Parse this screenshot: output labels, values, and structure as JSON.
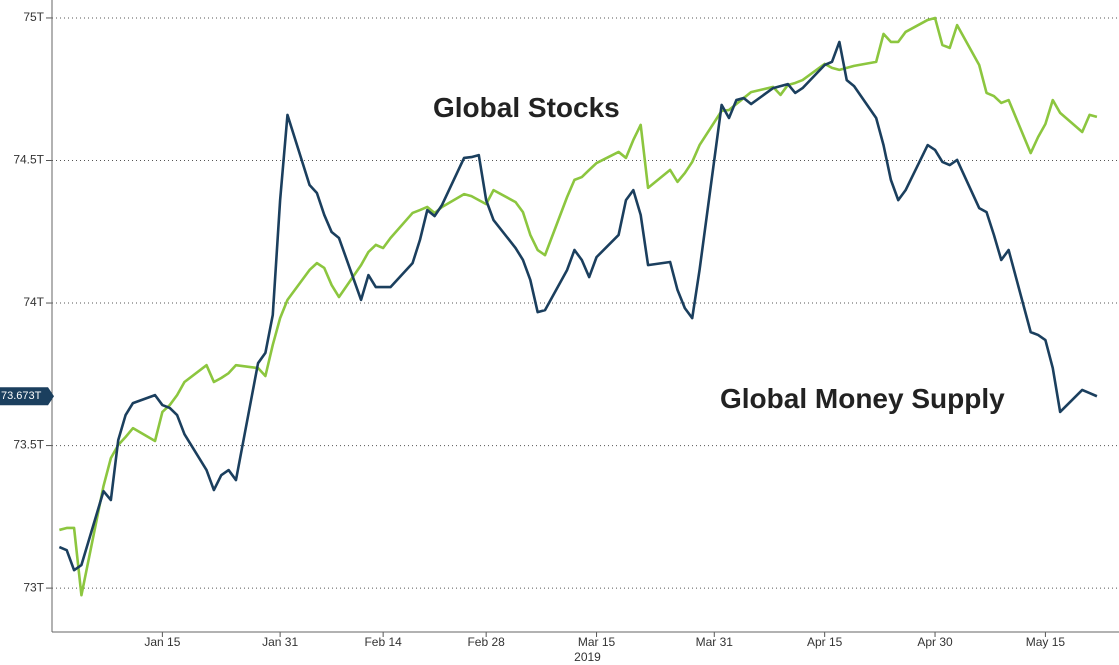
{
  "chart_data": {
    "type": "line",
    "xlabel": "2019",
    "xlim": [
      0,
      145
    ],
    "xticks": [
      {
        "value": 15,
        "label": "Jan 15"
      },
      {
        "value": 31,
        "label": "Jan 31"
      },
      {
        "value": 45,
        "label": "Feb 14"
      },
      {
        "value": 59,
        "label": "Feb 28"
      },
      {
        "value": 74,
        "label": "Mar 15"
      },
      {
        "value": 90,
        "label": "Mar 31"
      },
      {
        "value": 105,
        "label": "Apr 15"
      },
      {
        "value": 120,
        "label": "Apr 30"
      },
      {
        "value": 135,
        "label": "May 15"
      }
    ],
    "ylim": [
      72.846,
      75.063
    ],
    "yticks": [
      {
        "value": 73,
        "label": "73T"
      },
      {
        "value": 73.5,
        "label": "73.5T"
      },
      {
        "value": 74,
        "label": "74T"
      },
      {
        "value": 74.5,
        "label": "74.5T"
      },
      {
        "value": 75,
        "label": "75T"
      }
    ],
    "grid": "y",
    "x": [
      1,
      2,
      3,
      4,
      7,
      8,
      9,
      10,
      11,
      14,
      15,
      16,
      17,
      18,
      21,
      22,
      23,
      24,
      25,
      28,
      29,
      30,
      31,
      32,
      35,
      36,
      37,
      38,
      39,
      42,
      43,
      44,
      45,
      46,
      49,
      50,
      51,
      52,
      53,
      56,
      57,
      58,
      59,
      60,
      63,
      64,
      65,
      66,
      67,
      70,
      71,
      72,
      73,
      74,
      77,
      78,
      79,
      80,
      81,
      84,
      85,
      86,
      87,
      88,
      91,
      92,
      93,
      94,
      95,
      98,
      99,
      100,
      101,
      102,
      105,
      106,
      107,
      108,
      109,
      112,
      113,
      114,
      115,
      116,
      119,
      120,
      121,
      122,
      123,
      126,
      127,
      128,
      129,
      130,
      133,
      134,
      135,
      136,
      137,
      140,
      141,
      142
    ],
    "series": [
      {
        "name": "Global Stocks",
        "color": "#8cc63f",
        "values": [
          73.204,
          73.211,
          73.211,
          72.975,
          73.358,
          73.456,
          73.502,
          73.53,
          73.561,
          73.516,
          73.618,
          73.642,
          73.677,
          73.723,
          73.782,
          73.723,
          73.737,
          73.754,
          73.782,
          73.772,
          73.744,
          73.853,
          73.947,
          74.011,
          74.116,
          74.14,
          74.123,
          74.063,
          74.021,
          74.133,
          74.179,
          74.204,
          74.193,
          74.228,
          74.316,
          74.326,
          74.337,
          74.316,
          74.337,
          74.382,
          74.375,
          74.361,
          74.347,
          74.396,
          74.354,
          74.319,
          74.239,
          74.186,
          74.168,
          74.372,
          74.432,
          74.442,
          74.467,
          74.491,
          74.53,
          74.509,
          74.572,
          74.625,
          74.404,
          74.467,
          74.425,
          74.456,
          74.495,
          74.554,
          74.674,
          74.677,
          74.698,
          74.719,
          74.74,
          74.758,
          74.73,
          74.765,
          74.772,
          74.782,
          74.839,
          74.825,
          74.818,
          74.825,
          74.832,
          74.846,
          74.944,
          74.916,
          74.916,
          74.951,
          74.993,
          75.0,
          74.905,
          74.895,
          74.975,
          74.835,
          74.737,
          74.726,
          74.702,
          74.712,
          74.526,
          74.582,
          74.628,
          74.712,
          74.667,
          74.6,
          74.66,
          74.653
        ]
      },
      {
        "name": "Global Money Supply",
        "color": "#1b3f5e",
        "values": [
          73.144,
          73.133,
          73.063,
          73.081,
          73.34,
          73.309,
          73.519,
          73.607,
          73.649,
          73.677,
          73.642,
          73.632,
          73.607,
          73.54,
          73.414,
          73.344,
          73.396,
          73.414,
          73.379,
          73.789,
          73.825,
          73.958,
          74.361,
          74.66,
          74.414,
          74.386,
          74.309,
          74.249,
          74.228,
          74.011,
          74.098,
          74.056,
          74.056,
          74.056,
          74.14,
          74.221,
          74.326,
          74.305,
          74.344,
          74.509,
          74.512,
          74.519,
          74.361,
          74.291,
          74.193,
          74.151,
          74.081,
          73.968,
          73.975,
          74.116,
          74.186,
          74.151,
          74.091,
          74.161,
          74.239,
          74.361,
          74.396,
          74.309,
          74.133,
          74.144,
          74.046,
          73.982,
          73.947,
          74.116,
          74.695,
          74.649,
          74.712,
          74.719,
          74.698,
          74.754,
          74.761,
          74.768,
          74.737,
          74.754,
          74.835,
          74.846,
          74.916,
          74.782,
          74.761,
          74.649,
          74.554,
          74.432,
          74.361,
          74.396,
          74.554,
          74.537,
          74.495,
          74.484,
          74.502,
          74.333,
          74.319,
          74.239,
          74.151,
          74.186,
          73.898,
          73.888,
          73.87,
          73.772,
          73.618,
          73.695,
          73.684,
          73.673
        ],
        "end_label": {
          "value": 73.673,
          "label": "73.673T"
        }
      }
    ]
  }
}
